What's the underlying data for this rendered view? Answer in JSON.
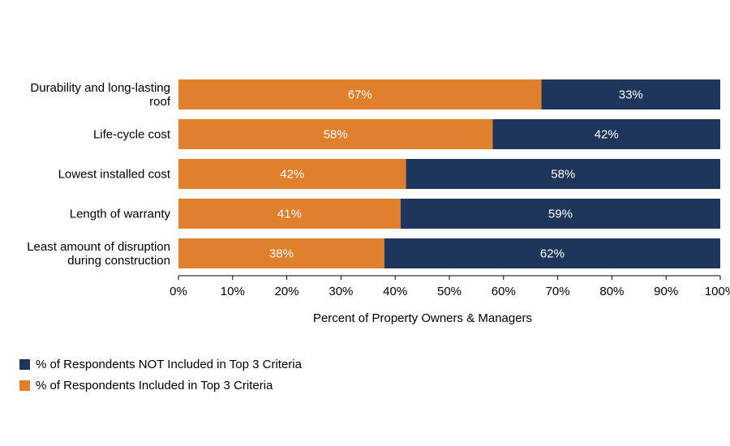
{
  "chart_data": {
    "type": "bar",
    "orientation": "horizontal",
    "stacked": true,
    "categories": [
      [
        "Durability and long-lasting",
        "roof"
      ],
      [
        "Life-cycle cost"
      ],
      [
        "Lowest installed cost"
      ],
      [
        "Length of warranty"
      ],
      [
        "Least amount of disruption",
        "during construction"
      ]
    ],
    "series": [
      {
        "name": "% of Respondents Included in Top 3 Criteria",
        "color": "#e07f2c",
        "values": [
          67,
          58,
          42,
          41,
          38
        ],
        "labels": [
          "67%",
          "58%",
          "42%",
          "41%",
          "38%"
        ]
      },
      {
        "name": "% of Respondents NOT Included in Top 3 Criteria",
        "color": "#1e365c",
        "values": [
          33,
          42,
          58,
          59,
          62
        ],
        "labels": [
          "33%",
          "42%",
          "58%",
          "59%",
          "62%"
        ]
      }
    ],
    "xlim": [
      0,
      100
    ],
    "xticks": [
      0,
      10,
      20,
      30,
      40,
      50,
      60,
      70,
      80,
      90,
      100
    ],
    "xtick_labels": [
      "0%",
      "10%",
      "20%",
      "30%",
      "40%",
      "50%",
      "60%",
      "70%",
      "80%",
      "90%",
      "100%"
    ],
    "xlabel": "Percent of Property Owners & Managers",
    "ylabel": "",
    "title": "",
    "legend": [
      {
        "label": "% of Respondents NOT Included in Top 3 Criteria",
        "color": "#1e365c"
      },
      {
        "label": "% of Respondents Included in Top 3 Criteria",
        "color": "#e07f2c"
      }
    ],
    "legend_position": "bottom-left"
  }
}
